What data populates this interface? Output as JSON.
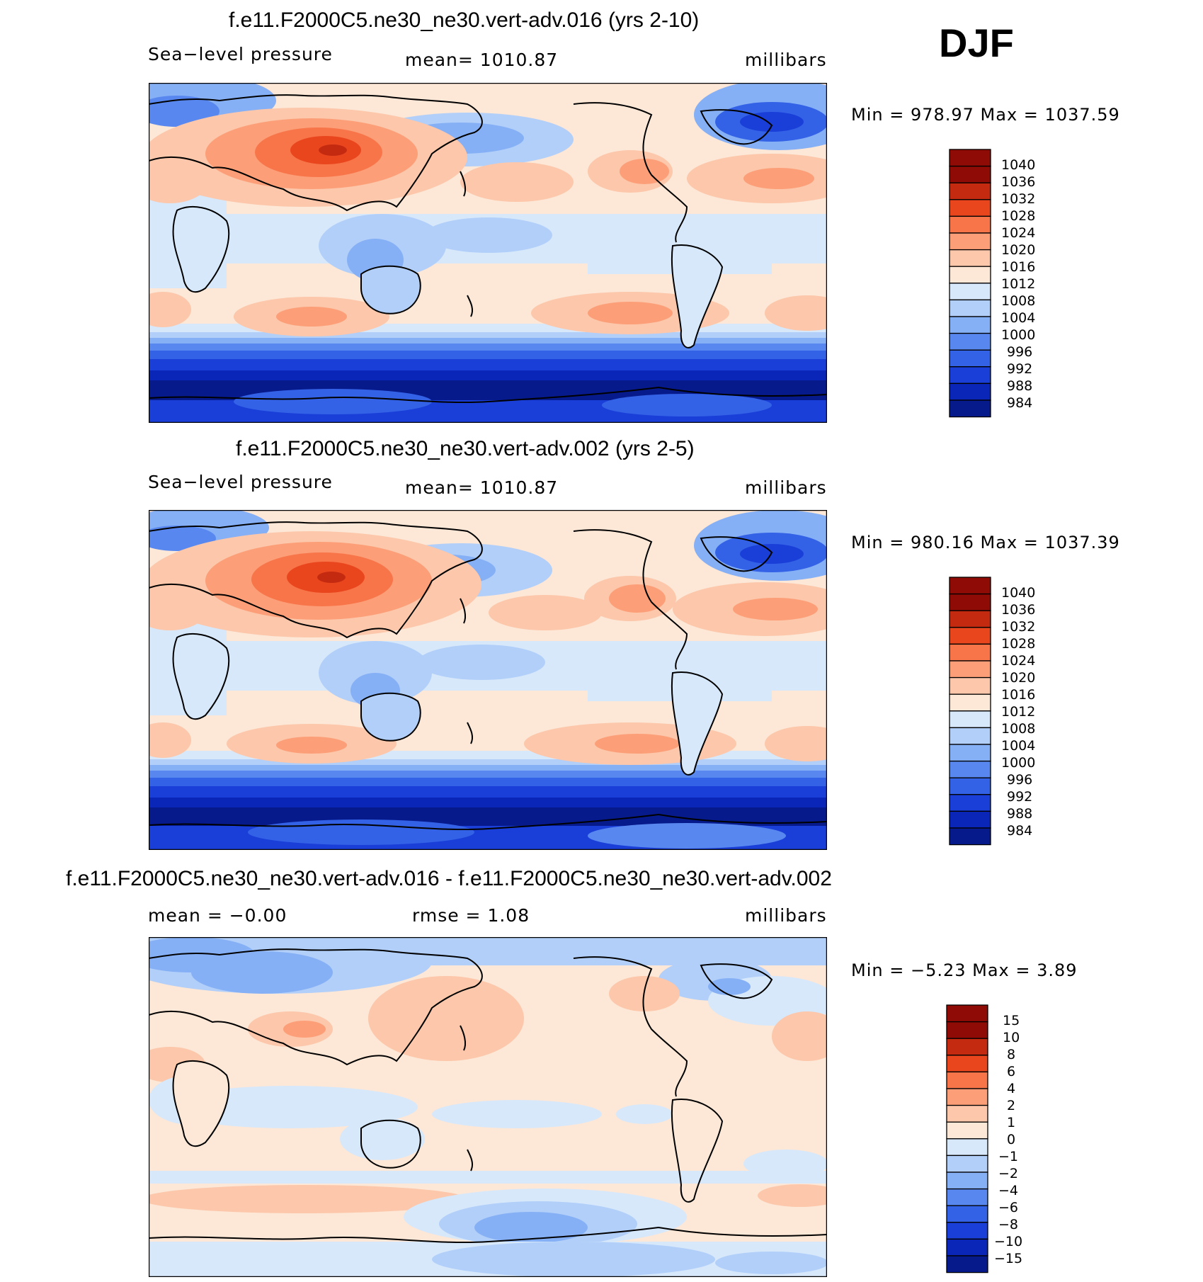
{
  "season": "DJF",
  "colors": {
    "warm": [
      "#fde7d6",
      "#fcc7aa",
      "#fc9f78",
      "#f8754a",
      "#e9461e",
      "#c42a10",
      "#8f0b05"
    ],
    "cool": [
      "#d7e8fb",
      "#b1cff9",
      "#86b0f5",
      "#5888ef",
      "#3462e6",
      "#1a3fd8",
      "#0a26b8",
      "#061a8c"
    ]
  },
  "panels": [
    {
      "title": "f.e11.F2000C5.ne30_ne30.vert-adv.016 (yrs 2-10)",
      "left_label": "Sea−level pressure",
      "center_label": "mean=  1010.87",
      "units": "millibars",
      "minmax": "Min  =  978.97  Max  =  1037.59",
      "colorbar_levels": [
        "1040",
        "1036",
        "1032",
        "1028",
        "1024",
        "1020",
        "1016",
        "1012",
        "1008",
        "1004",
        "1000",
        "996",
        "992",
        "988",
        "984"
      ]
    },
    {
      "title": "f.e11.F2000C5.ne30_ne30.vert-adv.002 (yrs 2-5)",
      "left_label": "Sea−level pressure",
      "center_label": "mean=  1010.87",
      "units": "millibars",
      "minmax": "Min  =  980.16  Max  =  1037.39",
      "colorbar_levels": [
        "1040",
        "1036",
        "1032",
        "1028",
        "1024",
        "1020",
        "1016",
        "1012",
        "1008",
        "1004",
        "1000",
        "996",
        "992",
        "988",
        "984"
      ]
    },
    {
      "title": "f.e11.F2000C5.ne30_ne30.vert-adv.016 - f.e11.F2000C5.ne30_ne30.vert-adv.002",
      "left_label": "mean  =    −0.00",
      "center_label": "rmse  =     1.08",
      "units": "millibars",
      "minmax": "Min  =    −5.23  Max  =      3.89",
      "colorbar_levels": [
        "15",
        "10",
        "8",
        "6",
        "4",
        "2",
        "1",
        "0",
        "−1",
        "−2",
        "−4",
        "−6",
        "−8",
        "−10",
        "−15"
      ]
    }
  ],
  "chart_data": [
    {
      "type": "heatmap",
      "title": "f.e11.F2000C5.ne30_ne30.vert-adv.016 (yrs 2-10)",
      "variable": "Sea-level pressure",
      "units": "millibars",
      "mean": 1010.87,
      "min": 978.97,
      "max": 1037.59,
      "contour_levels": [
        984,
        988,
        992,
        996,
        1000,
        1004,
        1008,
        1012,
        1016,
        1020,
        1024,
        1028,
        1032,
        1036,
        1040
      ]
    },
    {
      "type": "heatmap",
      "title": "f.e11.F2000C5.ne30_ne30.vert-adv.002 (yrs 2-5)",
      "variable": "Sea-level pressure",
      "units": "millibars",
      "mean": 1010.87,
      "min": 980.16,
      "max": 1037.39,
      "contour_levels": [
        984,
        988,
        992,
        996,
        1000,
        1004,
        1008,
        1012,
        1016,
        1020,
        1024,
        1028,
        1032,
        1036,
        1040
      ]
    },
    {
      "type": "heatmap",
      "title": "f.e11.F2000C5.ne30_ne30.vert-adv.016 - f.e11.F2000C5.ne30_ne30.vert-adv.002",
      "units": "millibars",
      "mean": -0.0,
      "rmse": 1.08,
      "min": -5.23,
      "max": 3.89,
      "contour_levels": [
        -15,
        -10,
        -8,
        -6,
        -4,
        -2,
        -1,
        0,
        1,
        2,
        4,
        6,
        8,
        10,
        15
      ]
    }
  ]
}
